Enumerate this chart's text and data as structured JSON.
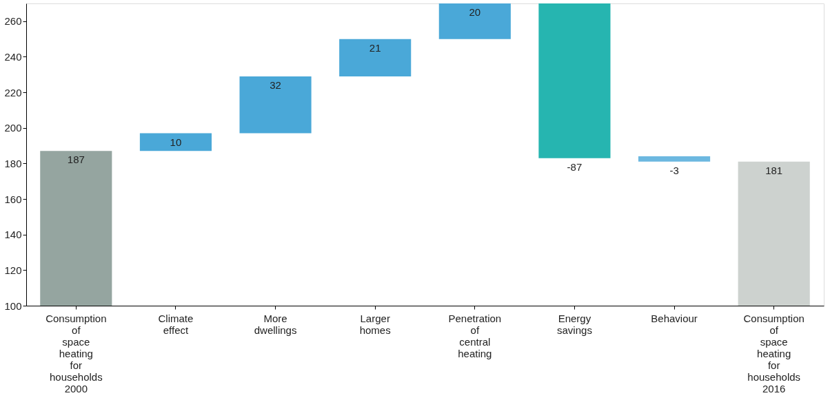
{
  "chart_data": {
    "type": "bar",
    "categories": [
      "Consumption of space heating for households 2000",
      "Climate effect",
      "More dwellings",
      "Larger homes",
      "Penetration of central heating",
      "Energy savings",
      "Behaviour",
      "Consumption of space heating for households 2016"
    ],
    "values": [
      187,
      10,
      32,
      21,
      20,
      -87,
      -3,
      181
    ],
    "base": [
      null,
      187,
      197,
      229,
      250,
      270,
      184,
      null
    ],
    "colors": [
      "#95a5a0",
      "#4aa8d8",
      "#4aa8d8",
      "#4aa8d8",
      "#4aa8d8",
      "#26b5b0",
      "#6cb8e0",
      "#cdd2cf"
    ],
    "ylim": [
      100,
      270
    ],
    "yticks": [
      100,
      120,
      140,
      160,
      180,
      200,
      220,
      240,
      260
    ],
    "data_labels": true
  }
}
